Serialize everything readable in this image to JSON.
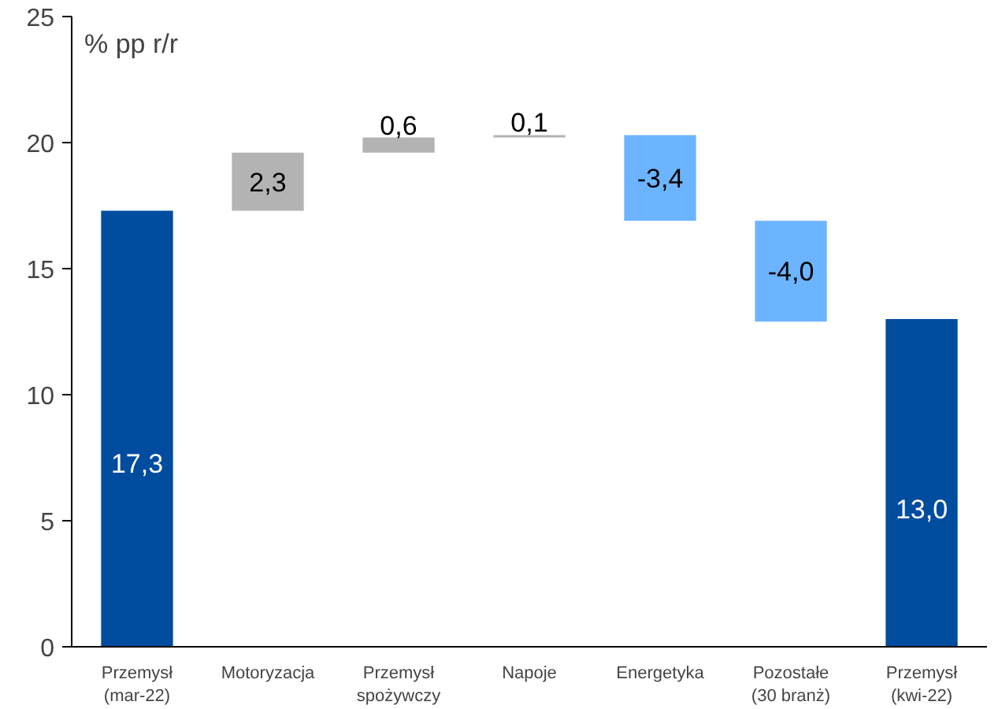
{
  "chart_data": {
    "type": "bar",
    "ylabel": "% pp r/r",
    "categories": [
      "Przemysł\n(mar-22)",
      "Motoryzacja",
      "Przemysł\nspożywczy",
      "Napoje",
      "Energetyka",
      "Pozostałe\n(30 branż)",
      "Przemysł\n(kwi-22)"
    ],
    "values": [
      17.3,
      2.3,
      0.6,
      0.1,
      -3.4,
      -4.0,
      13.0
    ],
    "base": [
      0,
      17.3,
      19.6,
      20.2,
      20.3,
      16.9,
      0
    ],
    "colors": [
      "#004c9f",
      "#b3b3b3",
      "#b3b3b3",
      "#b3b3b3",
      "#6cb4ff",
      "#6cb4ff",
      "#004c9f"
    ],
    "value_labels": [
      "17,3",
      "2,3",
      "0,6",
      "0,1",
      "-3,4",
      "-4,0",
      "13,0"
    ],
    "ylim": [
      0,
      25
    ],
    "yticks": [
      0,
      5,
      10,
      15,
      20,
      25
    ],
    "grid": false
  }
}
